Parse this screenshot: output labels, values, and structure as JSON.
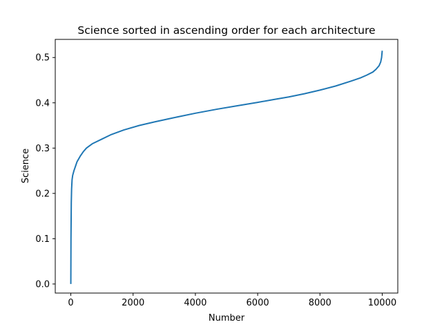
{
  "chart_data": {
    "type": "line",
    "title": "Science sorted in ascending order for each architecture",
    "xlabel": "Number",
    "ylabel": "Science",
    "xlim": [
      -500,
      10500
    ],
    "ylim": [
      -0.02,
      0.54
    ],
    "xticks": [
      0,
      2000,
      4000,
      6000,
      8000,
      10000
    ],
    "xtick_labels": [
      "0",
      "2000",
      "4000",
      "6000",
      "8000",
      "10000"
    ],
    "yticks": [
      0.0,
      0.1,
      0.2,
      0.3,
      0.4,
      0.5
    ],
    "ytick_labels": [
      "0.0",
      "0.1",
      "0.2",
      "0.3",
      "0.4",
      "0.5"
    ],
    "grid": false,
    "legend": "none",
    "series": [
      {
        "color": "#1f77b4",
        "x": [
          0,
          5,
          15,
          25,
          40,
          60,
          80,
          100,
          150,
          200,
          300,
          400,
          500,
          700,
          1000,
          1300,
          1700,
          2200,
          2700,
          3300,
          4000,
          4700,
          5300,
          6000,
          6500,
          7000,
          7500,
          8000,
          8500,
          9000,
          9300,
          9500,
          9700,
          9800,
          9900,
          9950,
          9980,
          10000
        ],
        "y": [
          0.0,
          0.1,
          0.18,
          0.21,
          0.23,
          0.24,
          0.245,
          0.25,
          0.26,
          0.27,
          0.282,
          0.292,
          0.3,
          0.31,
          0.32,
          0.33,
          0.34,
          0.35,
          0.358,
          0.367,
          0.377,
          0.386,
          0.393,
          0.401,
          0.407,
          0.413,
          0.42,
          0.428,
          0.437,
          0.448,
          0.455,
          0.461,
          0.468,
          0.474,
          0.482,
          0.49,
          0.5,
          0.515
        ]
      }
    ]
  }
}
